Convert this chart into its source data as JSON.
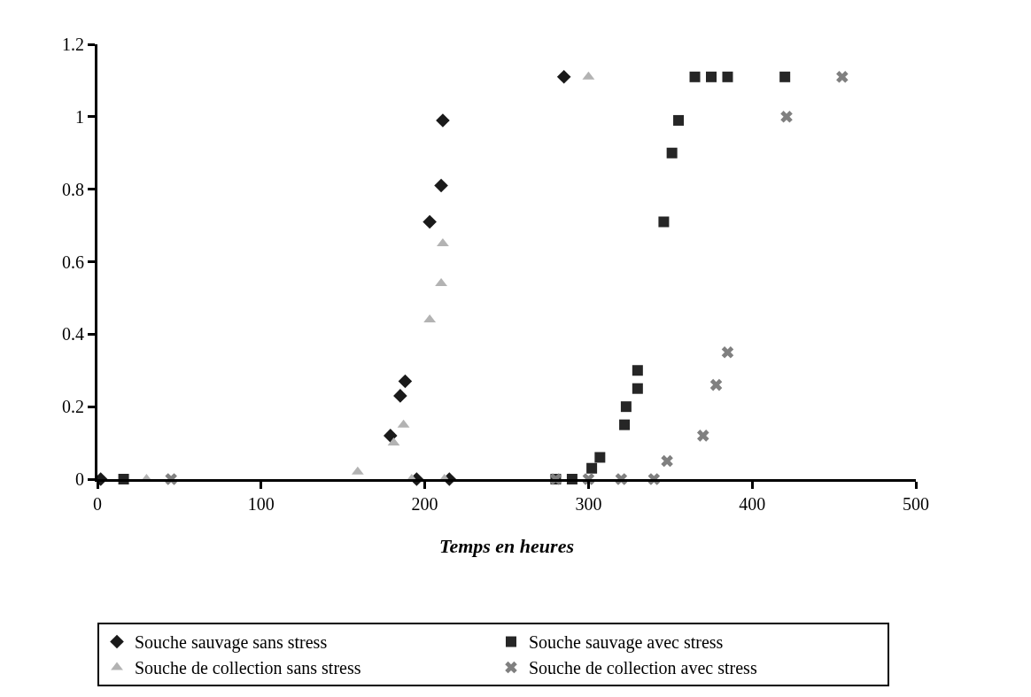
{
  "chart_data": {
    "type": "scatter",
    "xlabel": "Temps en heures",
    "xlim": [
      0,
      500
    ],
    "xticks": [
      0,
      100,
      200,
      300,
      400,
      500
    ],
    "ylim": [
      0,
      1.2
    ],
    "yticks": [
      0,
      0.2,
      0.4,
      0.6,
      0.8,
      1,
      1.2
    ],
    "legend": "bottom",
    "series": [
      {
        "name": "Souche sauvage sans stress",
        "color": "#1a1a1a",
        "marker": "diamond",
        "x": [
          2,
          179,
          185,
          188,
          195,
          203,
          210,
          211,
          215,
          285
        ],
        "values": [
          0,
          0.12,
          0.23,
          0.27,
          0,
          0.71,
          0.81,
          0.99,
          0,
          1.11
        ]
      },
      {
        "name": "Souche sauvage avec stress",
        "color": "#262626",
        "marker": "square",
        "x": [
          16,
          280,
          290,
          302,
          307,
          322,
          323,
          330,
          330,
          346,
          351,
          355,
          365,
          375,
          385,
          420
        ],
        "values": [
          0,
          0,
          0,
          0.03,
          0.06,
          0.15,
          0.2,
          0.25,
          0.3,
          0.71,
          0.9,
          0.99,
          1.11,
          1.11,
          1.11,
          1.11
        ]
      },
      {
        "name": "Souche de collection sans stress",
        "color": "#b3b3b3",
        "marker": "triangle",
        "x": [
          30,
          159,
          181,
          187,
          192,
          203,
          210,
          211,
          212,
          300
        ],
        "values": [
          0,
          0.02,
          0.1,
          0.15,
          0,
          0.44,
          0.54,
          0.65,
          0,
          1.11
        ]
      },
      {
        "name": "Souche de collection avec stress",
        "color": "#808080",
        "marker": "cross",
        "x": [
          45,
          280,
          300,
          320,
          340,
          348,
          370,
          378,
          385,
          421,
          455
        ],
        "values": [
          0,
          0,
          0,
          0,
          0,
          0.05,
          0.12,
          0.26,
          0.35,
          1.0,
          1.11
        ]
      }
    ]
  }
}
